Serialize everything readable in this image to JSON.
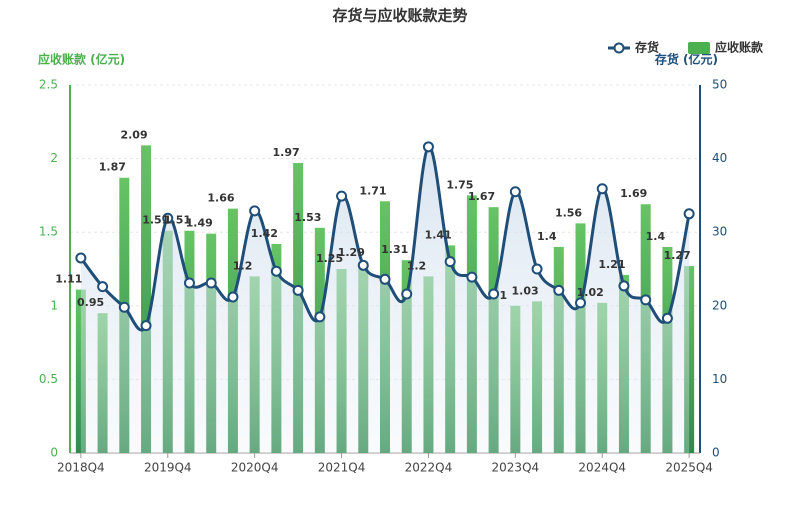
{
  "chart_data": {
    "type": "bar_line",
    "title": "存货与应收账款走势",
    "y_label": "应收账款 (亿元)",
    "y2_label": "存货 (亿元)",
    "categories": [
      "2018Q4",
      null,
      null,
      null,
      "2019Q4",
      null,
      null,
      null,
      "2020Q4",
      null,
      null,
      null,
      "2021Q4",
      null,
      null,
      null,
      "2022Q4",
      null,
      null,
      null,
      "2023Q4",
      null,
      null,
      null,
      "2024Q4",
      null,
      null,
      null,
      "2025Q4"
    ],
    "series": [
      {
        "name": "存货",
        "color": "#1f4e79",
        "axis": "y2",
        "values": [
          26.5,
          22.6,
          19.8,
          17.3,
          31.9,
          23.1,
          23.1,
          21.2,
          32.9,
          24.7,
          22.1,
          18.5,
          34.9,
          25.5,
          23.6,
          21.6,
          41.6,
          26.0,
          23.9,
          21.6,
          35.5,
          25.0,
          22.1,
          20.4,
          35.9,
          22.7,
          20.8,
          18.3,
          32.5
        ]
      },
      {
        "name": "应收账款",
        "color": "#4caf50",
        "values": [
          1.11,
          0.95,
          1.87,
          2.09,
          1.51,
          1.51,
          1.49,
          1.66,
          1.2,
          1.42,
          1.97,
          1.53,
          1.25,
          1.29,
          1.71,
          1.31,
          1.2,
          1.41,
          1.75,
          1.67,
          1,
          1.03,
          1.4,
          1.56,
          1.02,
          1.21,
          1.69,
          1.4,
          1.27
        ]
      }
    ],
    "ylim": [
      0,
      2.5
    ],
    "yticks": [
      0,
      0.5,
      1,
      1.5,
      2,
      2.5
    ],
    "y2lim": [
      0,
      50
    ],
    "y2ticks": [
      0,
      10,
      20,
      30,
      40,
      50
    ],
    "grid": true,
    "legend": "top-right"
  }
}
